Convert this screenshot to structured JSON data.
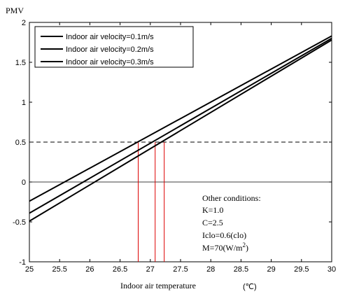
{
  "chart_data": {
    "type": "line",
    "title": "",
    "xlabel": "Indoor air temperature",
    "xunit": "(℃)",
    "ylabel": "PMV",
    "xlim": [
      25,
      30
    ],
    "ylim": [
      -1,
      2
    ],
    "xticks": [
      "25",
      "25.5",
      "26",
      "26.5",
      "27",
      "27.5",
      "28",
      "28.5",
      "29",
      "29.5",
      "30"
    ],
    "yticks": [
      "-1",
      "-0.5",
      "0",
      "0.5",
      "1",
      "1.5",
      "2"
    ],
    "grid": false,
    "legend_position": "top-left",
    "series": [
      {
        "name": "Indoor air velocity=0.1m/s",
        "x": [
          25,
          30
        ],
        "y": [
          -0.24,
          1.83
        ]
      },
      {
        "name": "Indoor air velocity=0.2m/s",
        "x": [
          25,
          30
        ],
        "y": [
          -0.39,
          1.8
        ]
      },
      {
        "name": "Indoor air velocity=0.3m/s",
        "x": [
          25,
          30
        ],
        "y": [
          -0.49,
          1.78
        ]
      }
    ],
    "reference_lines": {
      "horizontal_zero": 0,
      "horizontal_dashed": 0.5,
      "vertical_red_x": [
        26.8,
        27.08,
        27.23
      ],
      "vertical_color": "#dd0000"
    },
    "annotation": {
      "heading": "Other conditions:",
      "lines": [
        "K=1.0",
        "C=2.5",
        "Iclo=0.6(clo)"
      ],
      "m_line": {
        "prefix": "M=70(W/m",
        "superscript": "2",
        "suffix": ")"
      }
    }
  }
}
